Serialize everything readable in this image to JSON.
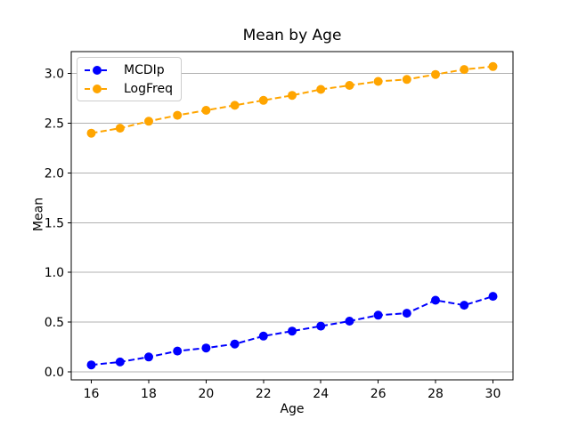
{
  "chart_data": {
    "type": "line",
    "title": "Mean by Age",
    "xlabel": "Age",
    "ylabel": "Mean",
    "x": [
      16,
      17,
      18,
      19,
      20,
      21,
      22,
      23,
      24,
      25,
      26,
      27,
      28,
      29,
      30
    ],
    "series": [
      {
        "name": "MCDIp",
        "color": "#0000ff",
        "linestyle": "dashed",
        "marker": "circle",
        "values": [
          0.07,
          0.1,
          0.15,
          0.21,
          0.24,
          0.28,
          0.36,
          0.41,
          0.46,
          0.51,
          0.57,
          0.59,
          0.72,
          0.67,
          0.76
        ]
      },
      {
        "name": "LogFreq",
        "color": "#ffa500",
        "linestyle": "dashed",
        "marker": "circle",
        "values": [
          2.4,
          2.45,
          2.52,
          2.58,
          2.63,
          2.68,
          2.73,
          2.78,
          2.84,
          2.88,
          2.92,
          2.94,
          2.99,
          3.04,
          3.07
        ]
      }
    ],
    "xticks": [
      16,
      18,
      20,
      22,
      24,
      26,
      28,
      30
    ],
    "yticks": [
      0.0,
      0.5,
      1.0,
      1.5,
      2.0,
      2.5,
      3.0
    ],
    "xlim": [
      15.3,
      30.7
    ],
    "ylim": [
      -0.08,
      3.22
    ],
    "grid": "horizontal",
    "grid_color": "#b0b0b0",
    "axis_color": "#000000",
    "background_color": "#ffffff",
    "legend_position": "upper-left"
  }
}
